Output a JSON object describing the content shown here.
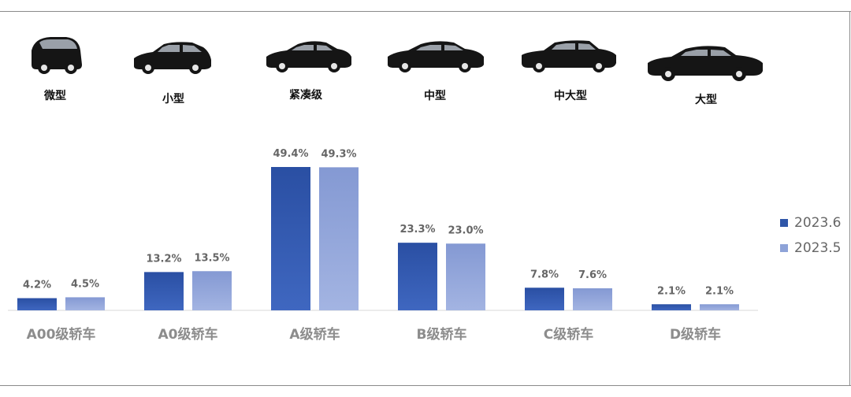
{
  "car_types": [
    "微型",
    "小型",
    "紧凑级",
    "中型",
    "中大型",
    "大型"
  ],
  "chart_data": {
    "type": "bar",
    "categories": [
      "A00级轿车",
      "A0级轿车",
      "A级轿车",
      "B级轿车",
      "C级轿车",
      "D级轿车"
    ],
    "series": [
      {
        "name": "2023.6",
        "values": [
          4.2,
          13.2,
          49.4,
          23.3,
          7.8,
          2.1
        ],
        "labels": [
          "4.2%",
          "13.2%",
          "49.4%",
          "23.3%",
          "7.8%",
          "2.1%"
        ],
        "color": "#2f56a8"
      },
      {
        "name": "2023.5",
        "values": [
          4.5,
          13.5,
          49.3,
          23.0,
          7.6,
          2.1
        ],
        "labels": [
          "4.5%",
          "13.5%",
          "49.3%",
          "23.0%",
          "7.6%",
          "2.1%"
        ],
        "color": "#8ea3d8"
      }
    ],
    "unit": "%",
    "ylim": [
      0,
      49.4
    ],
    "grid": false,
    "legend": "right"
  }
}
